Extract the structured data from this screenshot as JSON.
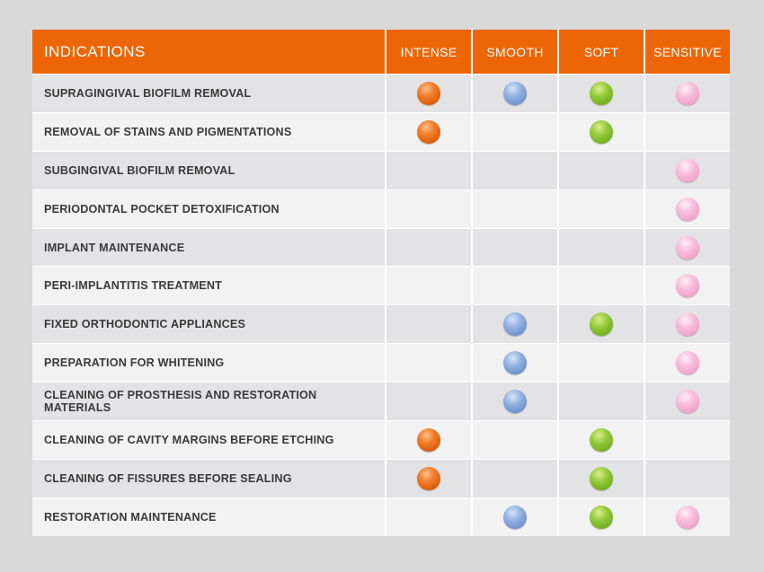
{
  "header": {
    "indications": "INDICATIONS",
    "columns": [
      "INTENSE",
      "SMOOTH",
      "SOFT",
      "SENSITIVE"
    ]
  },
  "colors": {
    "header_bg": "#ec6608",
    "intense": "#e8650f",
    "smooth": "#7a9fd6",
    "soft": "#84bd2a",
    "sensitive": "#f4a8cf"
  },
  "rows": [
    {
      "label": "SUPRAGINGIVAL BIOFILM REMOVAL",
      "intense": true,
      "smooth": true,
      "soft": true,
      "sensitive": true
    },
    {
      "label": "REMOVAL OF STAINS AND PIGMENTATIONS",
      "intense": true,
      "smooth": false,
      "soft": true,
      "sensitive": false
    },
    {
      "label": "SUBGINGIVAL BIOFILM REMOVAL",
      "intense": false,
      "smooth": false,
      "soft": false,
      "sensitive": true
    },
    {
      "label": "PERIODONTAL POCKET DETOXIFICATION",
      "intense": false,
      "smooth": false,
      "soft": false,
      "sensitive": true
    },
    {
      "label": "IMPLANT MAINTENANCE",
      "intense": false,
      "smooth": false,
      "soft": false,
      "sensitive": true
    },
    {
      "label": "PERI-IMPLANTITIS TREATMENT",
      "intense": false,
      "smooth": false,
      "soft": false,
      "sensitive": true
    },
    {
      "label": "FIXED ORTHODONTIC APPLIANCES",
      "intense": false,
      "smooth": true,
      "soft": true,
      "sensitive": true
    },
    {
      "label": "PREPARATION FOR WHITENING",
      "intense": false,
      "smooth": true,
      "soft": false,
      "sensitive": true
    },
    {
      "label": "CLEANING OF PROSTHESIS AND RESTORATION MATERIALS",
      "intense": false,
      "smooth": true,
      "soft": false,
      "sensitive": true
    },
    {
      "label": "CLEANING OF CAVITY MARGINS BEFORE ETCHING",
      "intense": true,
      "smooth": false,
      "soft": true,
      "sensitive": false
    },
    {
      "label": "CLEANING OF FISSURES BEFORE SEALING",
      "intense": true,
      "smooth": false,
      "soft": true,
      "sensitive": false
    },
    {
      "label": "RESTORATION MAINTENANCE",
      "intense": false,
      "smooth": true,
      "soft": true,
      "sensitive": true
    }
  ]
}
